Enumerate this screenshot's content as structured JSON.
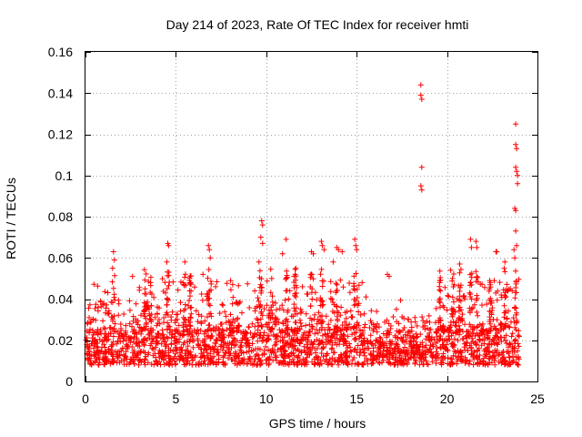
{
  "chart_data": {
    "type": "scatter",
    "title": "Day 214 of 2023, Rate Of TEC Index for receiver hmti",
    "xlabel": "GPS time / hours",
    "ylabel": "ROTI / TECUs",
    "xlim": [
      0,
      25
    ],
    "ylim": [
      0,
      0.16
    ],
    "xticks": [
      0,
      5,
      10,
      15,
      20,
      25
    ],
    "yticks": [
      0,
      0.02,
      0.04,
      0.06,
      0.08,
      0.1,
      0.12,
      0.14,
      0.16
    ],
    "xtick_labels": [
      "0",
      "5",
      "10",
      "15",
      "20",
      "25"
    ],
    "ytick_labels": [
      "0",
      "0.02",
      "0.04",
      "0.06",
      "0.08",
      "0.1",
      "0.12",
      "0.14",
      "0.16"
    ],
    "grid": true,
    "marker": "+",
    "color": "#ff0000",
    "series": [
      {
        "name": "ROTI",
        "baseline_band": [
          0.008,
          0.025
        ],
        "notable_points": [
          [
            1.55,
            0.063
          ],
          [
            1.6,
            0.059
          ],
          [
            1.5,
            0.055
          ],
          [
            4.55,
            0.067
          ],
          [
            4.6,
            0.066
          ],
          [
            4.5,
            0.058
          ],
          [
            6.8,
            0.066
          ],
          [
            6.85,
            0.064
          ],
          [
            6.9,
            0.06
          ],
          [
            5.5,
            0.058
          ],
          [
            9.75,
            0.078
          ],
          [
            9.8,
            0.076
          ],
          [
            9.7,
            0.07
          ],
          [
            9.8,
            0.067
          ],
          [
            9.6,
            0.058
          ],
          [
            11.1,
            0.069
          ],
          [
            10.9,
            0.062
          ],
          [
            12.5,
            0.063
          ],
          [
            12.6,
            0.062
          ],
          [
            13.05,
            0.068
          ],
          [
            13.1,
            0.066
          ],
          [
            13.2,
            0.064
          ],
          [
            13.9,
            0.065
          ],
          [
            14.0,
            0.064
          ],
          [
            14.2,
            0.063
          ],
          [
            14.9,
            0.069
          ],
          [
            14.95,
            0.066
          ],
          [
            15.0,
            0.064
          ],
          [
            13.7,
            0.058
          ],
          [
            16.7,
            0.052
          ],
          [
            16.8,
            0.051
          ],
          [
            18.55,
            0.144
          ],
          [
            18.55,
            0.139
          ],
          [
            18.6,
            0.137
          ],
          [
            18.6,
            0.104
          ],
          [
            18.55,
            0.095
          ],
          [
            18.6,
            0.093
          ],
          [
            20.2,
            0.054
          ],
          [
            20.3,
            0.05
          ],
          [
            20.7,
            0.057
          ],
          [
            21.3,
            0.069
          ],
          [
            21.35,
            0.065
          ],
          [
            21.6,
            0.068
          ],
          [
            21.65,
            0.065
          ],
          [
            22.7,
            0.063
          ],
          [
            22.75,
            0.063
          ],
          [
            23.2,
            0.058
          ],
          [
            23.8,
            0.125
          ],
          [
            23.8,
            0.115
          ],
          [
            23.85,
            0.113
          ],
          [
            23.8,
            0.104
          ],
          [
            23.85,
            0.102
          ],
          [
            23.9,
            0.1
          ],
          [
            23.9,
            0.096
          ],
          [
            23.75,
            0.084
          ],
          [
            23.8,
            0.083
          ],
          [
            23.8,
            0.073
          ],
          [
            23.85,
            0.066
          ],
          [
            23.7,
            0.064
          ],
          [
            23.75,
            0.06
          ],
          [
            23.5,
            0.045
          ],
          [
            23.6,
            0.044
          ],
          [
            0.2,
            0.031
          ],
          [
            0.1,
            0.028
          ],
          [
            0.7,
            0.036
          ],
          [
            2.6,
            0.051
          ],
          [
            3.3,
            0.045
          ],
          [
            3.6,
            0.048
          ],
          [
            5.8,
            0.048
          ],
          [
            6.5,
            0.052
          ],
          [
            7.2,
            0.046
          ],
          [
            8.5,
            0.038
          ],
          [
            10.3,
            0.05
          ],
          [
            11.6,
            0.052
          ],
          [
            12.0,
            0.046
          ],
          [
            15.3,
            0.048
          ],
          [
            16.1,
            0.034
          ],
          [
            17.2,
            0.035
          ],
          [
            19.6,
            0.048
          ],
          [
            22.4,
            0.048
          ],
          [
            23.0,
            0.042
          ]
        ]
      }
    ]
  }
}
